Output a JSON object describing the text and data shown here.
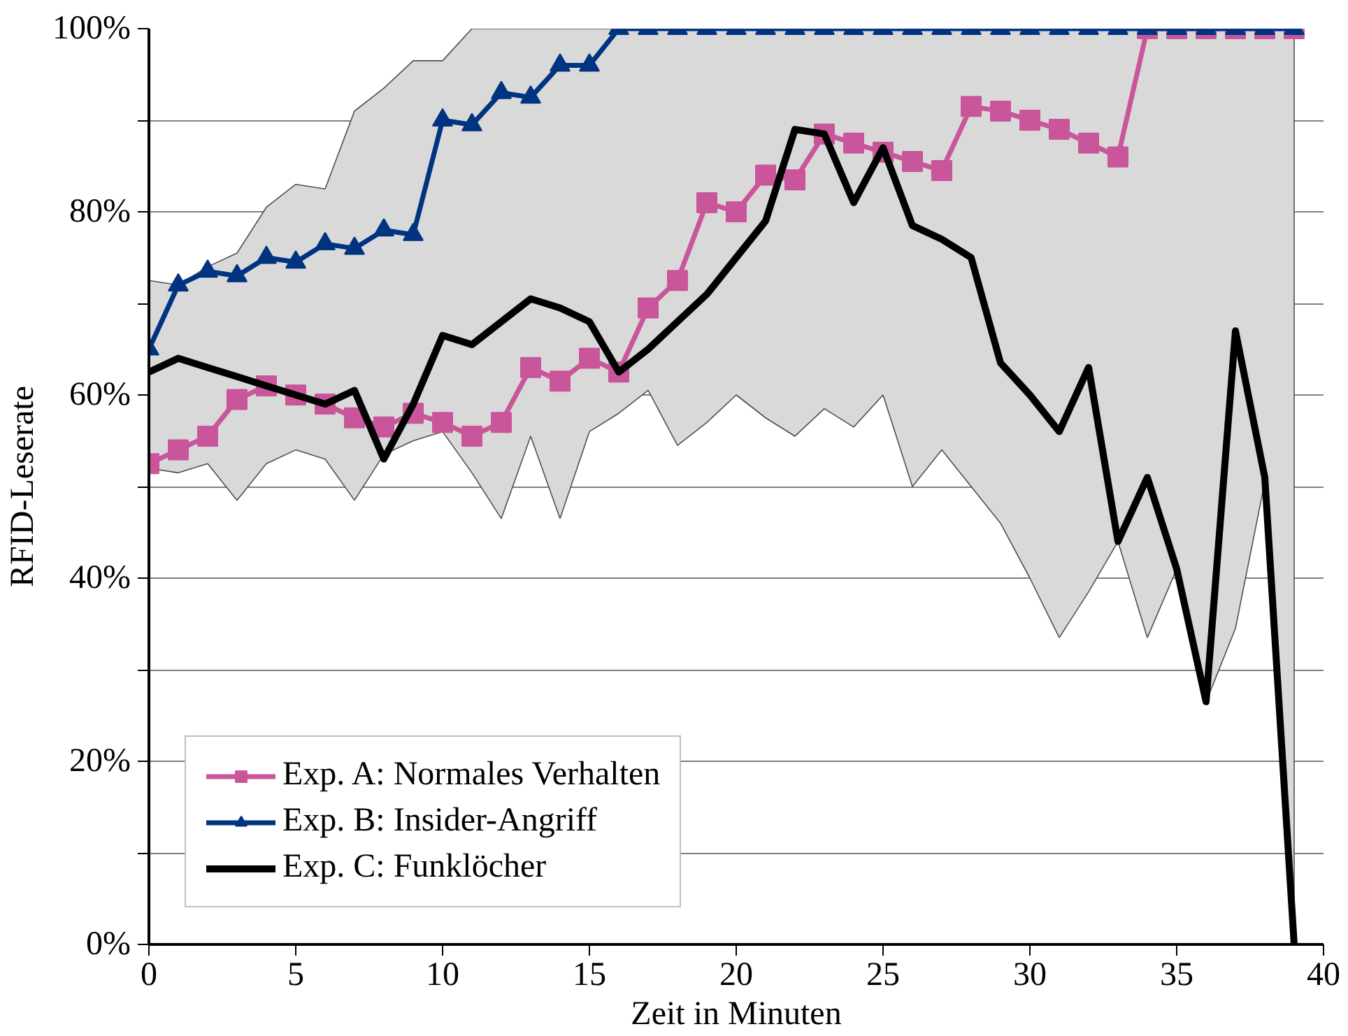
{
  "chart_data": {
    "type": "line",
    "xlabel": "Zeit in Minuten",
    "ylabel": "RFID-Leserate",
    "x": [
      0,
      1,
      2,
      3,
      4,
      5,
      6,
      7,
      8,
      9,
      10,
      11,
      12,
      13,
      14,
      15,
      16,
      17,
      18,
      19,
      20,
      21,
      22,
      23,
      24,
      25,
      26,
      27,
      28,
      29,
      30,
      31,
      32,
      33,
      34,
      35,
      36,
      37,
      38,
      39
    ],
    "series": [
      {
        "name": "Exp. A: Normales Verhalten",
        "color": "#c9559a",
        "marker": "square",
        "values": [
          52.5,
          54,
          55.5,
          59.5,
          61,
          60,
          59,
          57.5,
          56.5,
          58,
          57,
          55.5,
          57,
          63,
          61.5,
          64,
          62.5,
          69.5,
          72.5,
          81,
          80,
          84,
          83.5,
          88.5,
          87.5,
          86.5,
          85.5,
          84.5,
          91.5,
          91,
          90,
          89,
          87.5,
          86,
          100,
          100,
          100,
          100,
          100,
          100
        ]
      },
      {
        "name": "Exp. B: Insider-Angriff",
        "color": "#003380",
        "marker": "triangle",
        "values": [
          65,
          72,
          73.5,
          73,
          75,
          74.5,
          76.5,
          76,
          78,
          77.5,
          90,
          89.5,
          93,
          92.5,
          96,
          96,
          100,
          100,
          100,
          100,
          100,
          100,
          100,
          100,
          100,
          100,
          100,
          100,
          100,
          100,
          100,
          100,
          100,
          100,
          100,
          100,
          100,
          100,
          100,
          100
        ]
      },
      {
        "name": "Exp. C: Funklöcher",
        "color": "#000000",
        "marker": "none",
        "values": [
          62.5,
          64,
          63,
          62,
          61,
          60,
          59,
          60.5,
          53,
          59,
          66.5,
          65.5,
          68,
          70.5,
          69.5,
          68,
          62.5,
          65,
          68,
          71,
          75,
          79,
          89,
          88.5,
          81,
          87,
          78.5,
          77,
          75,
          63.5,
          60,
          56,
          63,
          44,
          51,
          41,
          26.5,
          67,
          51,
          0
        ],
        "lower": [
          52,
          51.5,
          52.5,
          48.5,
          52.5,
          54,
          53,
          48.5,
          53.5,
          55,
          56,
          51.5,
          46.5,
          55.5,
          46.5,
          56,
          58,
          60.5,
          54.5,
          57,
          60,
          57.5,
          55.5,
          58.5,
          56.5,
          60,
          50,
          54,
          50,
          46,
          40,
          33.5,
          38.5,
          44,
          33.5,
          41,
          26.5,
          34.5,
          50.5,
          0
        ],
        "upper": [
          72.5,
          72,
          74,
          75.5,
          80.5,
          83,
          82.5,
          91,
          93.5,
          96.5,
          96.5,
          100,
          100,
          100,
          100,
          100,
          100,
          100,
          100,
          100,
          100,
          100,
          100,
          100,
          100,
          100,
          100,
          100,
          100,
          100,
          100,
          100,
          100,
          100,
          100,
          100,
          100,
          100,
          100,
          100
        ]
      }
    ],
    "xlim": [
      0,
      40
    ],
    "xticks": [
      0,
      5,
      10,
      15,
      20,
      25,
      30,
      35,
      40
    ],
    "ylim": [
      0,
      100
    ],
    "yticks": [
      {
        "value": 0,
        "label": "0%"
      },
      {
        "value": 10,
        "label": null
      },
      {
        "value": 20,
        "label": "20%"
      },
      {
        "value": 30,
        "label": null
      },
      {
        "value": 40,
        "label": "40%"
      },
      {
        "value": 50,
        "label": null
      },
      {
        "value": 60,
        "label": "60%"
      },
      {
        "value": 70,
        "label": null
      },
      {
        "value": 80,
        "label": "80%"
      },
      {
        "value": 90,
        "label": null
      },
      {
        "value": 100,
        "label": "100%"
      }
    ],
    "grid": "y",
    "legend": "bottom left",
    "line_style": "solid"
  }
}
